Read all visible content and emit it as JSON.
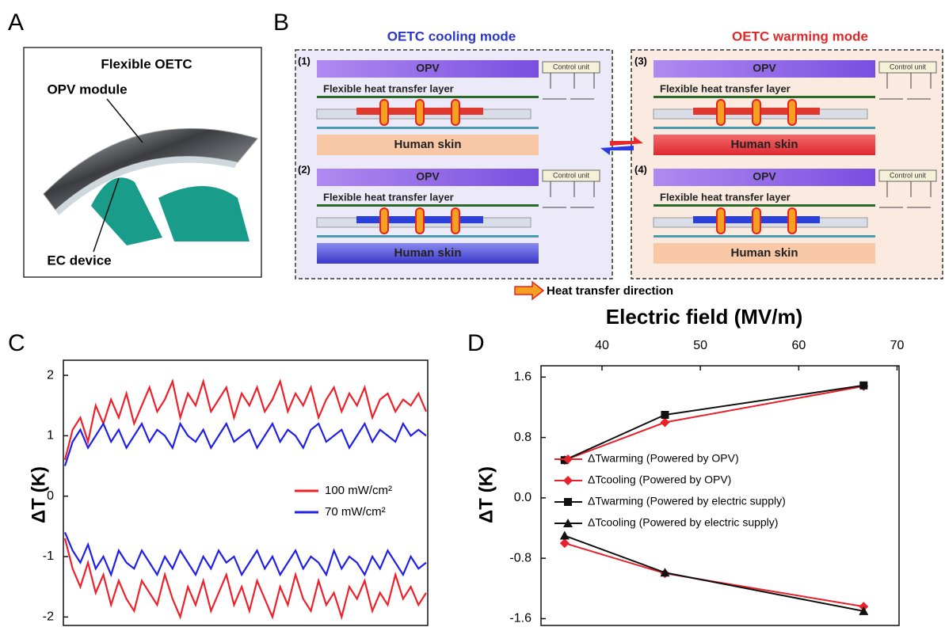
{
  "panels": [
    "A",
    "B",
    "C",
    "D"
  ],
  "photo": {
    "title": "Flexible OETC",
    "top_label": "OPV module",
    "bottom_label": "EC device"
  },
  "diagram": {
    "modes": [
      "OETC cooling mode",
      "OETC warming mode"
    ],
    "subpanels": [
      {
        "label": "(1)",
        "opv": "OPV",
        "layer": "Flexible heat transfer layer",
        "skin": "Human skin",
        "control": "Control unit"
      },
      {
        "label": "(2)",
        "opv": "OPV",
        "layer": "Flexible heat transfer layer",
        "skin": "Human skin",
        "control": "Control unit"
      },
      {
        "label": "(3)",
        "opv": "OPV",
        "layer": "Flexible heat transfer layer",
        "skin": "Human skin",
        "control": "Control unit"
      },
      {
        "label": "(4)",
        "opv": "OPV",
        "layer": "Flexible heat transfer layer",
        "skin": "Human skin",
        "control": "Control unit"
      }
    ],
    "legend": "Heat transfer direction"
  },
  "chart_data": [
    {
      "type": "line",
      "ylabel": "ΔT (K)",
      "ylim": [
        -2.14,
        2.25
      ],
      "yticks": [
        -2,
        -1,
        0,
        1,
        2
      ],
      "series": [
        {
          "name": "100 mW/cm²",
          "color": "#f0202a",
          "values": [
            0.6,
            1.1,
            1.3,
            0.9,
            1.5,
            1.2,
            1.6,
            1.3,
            1.7,
            1.2,
            1.5,
            1.8,
            1.4,
            1.6,
            1.9,
            1.3,
            1.7,
            1.5,
            1.9,
            1.4,
            1.6,
            1.8,
            1.3,
            1.7,
            1.5,
            1.8,
            1.4,
            1.6,
            1.9,
            1.4,
            1.7,
            1.5,
            1.8,
            1.3,
            1.6,
            1.8,
            1.4,
            1.7,
            1.5,
            1.8,
            1.3,
            1.6,
            1.7,
            1.4,
            1.6,
            1.5,
            1.7,
            1.4
          ]
        },
        {
          "name": "70 mW/cm²",
          "color": "#2020e8",
          "values": [
            0.5,
            0.9,
            1.1,
            0.8,
            1.0,
            1.2,
            0.9,
            1.1,
            0.8,
            1.0,
            1.2,
            0.9,
            1.1,
            1.0,
            0.8,
            1.2,
            1.0,
            0.9,
            1.1,
            0.8,
            1.0,
            1.2,
            0.9,
            1.0,
            1.1,
            0.8,
            1.0,
            1.2,
            0.9,
            1.1,
            1.0,
            0.8,
            1.1,
            1.2,
            0.9,
            1.0,
            1.1,
            0.8,
            1.0,
            1.2,
            0.9,
            1.1,
            1.0,
            0.9,
            1.2,
            1.0,
            1.1,
            1.0
          ]
        },
        {
          "color": "#f0202a",
          "values": [
            -0.7,
            -1.2,
            -1.5,
            -1.1,
            -1.6,
            -1.3,
            -1.8,
            -1.4,
            -1.7,
            -1.9,
            -1.4,
            -1.6,
            -1.8,
            -1.3,
            -1.7,
            -2.0,
            -1.5,
            -1.8,
            -1.4,
            -1.9,
            -1.6,
            -1.3,
            -1.8,
            -1.5,
            -1.9,
            -1.4,
            -1.7,
            -2.0,
            -1.5,
            -1.8,
            -1.3,
            -1.7,
            -1.9,
            -1.4,
            -1.8,
            -1.6,
            -2.0,
            -1.5,
            -1.7,
            -1.4,
            -1.9,
            -1.6,
            -1.8,
            -1.3,
            -1.7,
            -1.5,
            -1.8,
            -1.6
          ]
        },
        {
          "color": "#2020e8",
          "values": [
            -0.6,
            -0.9,
            -1.1,
            -0.8,
            -1.2,
            -1.0,
            -1.3,
            -0.9,
            -1.1,
            -1.2,
            -0.9,
            -1.1,
            -1.3,
            -1.0,
            -1.2,
            -0.9,
            -1.1,
            -1.3,
            -1.0,
            -1.2,
            -0.9,
            -1.1,
            -1.0,
            -1.3,
            -1.1,
            -0.9,
            -1.2,
            -1.0,
            -1.3,
            -1.1,
            -0.9,
            -1.2,
            -1.0,
            -1.1,
            -1.3,
            -0.9,
            -1.2,
            -1.0,
            -1.1,
            -1.3,
            -1.0,
            -1.2,
            -0.9,
            -1.1,
            -1.3,
            -1.0,
            -1.2,
            -1.1
          ]
        }
      ]
    },
    {
      "type": "line",
      "xlabel": "Electric field (MV/m)",
      "ylabel": "ΔT (K)",
      "xlim": [
        33.8,
        70.2
      ],
      "xticks": [
        40,
        50,
        60,
        70
      ],
      "ylim": [
        -1.69,
        1.75
      ],
      "yticks": [
        1.6,
        0.8,
        {
          "value": 0,
          "label": "0.0"
        },
        -0.8,
        -1.6
      ],
      "x": [
        36.2,
        46.4,
        66.6
      ],
      "series": [
        {
          "name": "ΔTwarming (Powered by OPV)",
          "color": "#e8202a",
          "marker": "diamond",
          "values": [
            0.5,
            1.0,
            1.48
          ]
        },
        {
          "name": "ΔTcooling (Powered by OPV)",
          "color": "#e8202a",
          "marker": "diamond",
          "values": [
            -0.6,
            -1.0,
            -1.44
          ]
        },
        {
          "name": "ΔTwarming (Powered by electric supply)",
          "color": "#111111",
          "marker": "square",
          "values": [
            0.5,
            1.1,
            1.49
          ]
        },
        {
          "name": "ΔTcooling (Powered by electric supply)",
          "color": "#111111",
          "marker": "triangle",
          "values": [
            -0.5,
            -0.99,
            -1.5
          ]
        }
      ]
    }
  ]
}
